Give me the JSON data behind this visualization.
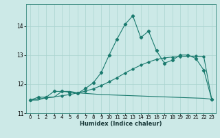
{
  "xlabel": "Humidex (Indice chaleur)",
  "ylabel": "",
  "bg_color": "#cce9e7",
  "grid_color": "#aad4d0",
  "line_color": "#1a7a6e",
  "xlim": [
    -0.5,
    23.5
  ],
  "ylim": [
    11.0,
    14.75
  ],
  "xticks": [
    0,
    1,
    2,
    3,
    4,
    5,
    6,
    7,
    8,
    9,
    10,
    11,
    12,
    13,
    14,
    15,
    16,
    17,
    18,
    19,
    20,
    21,
    22,
    23
  ],
  "yticks": [
    11,
    12,
    13,
    14
  ],
  "line1_x": [
    0,
    1,
    2,
    3,
    4,
    5,
    6,
    7,
    8,
    9,
    10,
    11,
    12,
    13,
    14,
    15,
    16,
    17,
    18,
    19,
    20,
    21,
    22,
    23
  ],
  "line1_y": [
    11.45,
    11.55,
    11.55,
    11.75,
    11.75,
    11.72,
    11.68,
    11.85,
    12.05,
    12.4,
    13.0,
    13.55,
    14.05,
    14.35,
    13.6,
    13.82,
    13.15,
    12.72,
    12.82,
    13.0,
    13.0,
    12.88,
    12.48,
    11.48
  ],
  "line2_x": [
    0,
    2,
    4,
    5,
    6,
    7,
    8,
    9,
    10,
    11,
    12,
    13,
    14,
    15,
    16,
    17,
    18,
    19,
    20,
    21,
    22,
    23
  ],
  "line2_y": [
    11.45,
    11.52,
    11.6,
    11.64,
    11.7,
    11.76,
    11.84,
    11.95,
    12.08,
    12.22,
    12.38,
    12.52,
    12.65,
    12.76,
    12.85,
    12.9,
    12.93,
    12.95,
    12.96,
    12.96,
    12.95,
    11.48
  ],
  "line3_x": [
    0,
    1,
    2,
    3,
    4,
    5,
    6,
    7,
    8,
    9,
    10,
    11,
    12,
    13,
    14,
    15,
    16,
    17,
    18,
    19,
    20,
    21,
    22,
    23
  ],
  "line3_y": [
    11.45,
    11.45,
    11.55,
    11.55,
    11.75,
    11.75,
    11.7,
    11.68,
    11.66,
    11.64,
    11.63,
    11.62,
    11.61,
    11.6,
    11.59,
    11.58,
    11.57,
    11.56,
    11.55,
    11.54,
    11.53,
    11.52,
    11.51,
    11.48
  ]
}
